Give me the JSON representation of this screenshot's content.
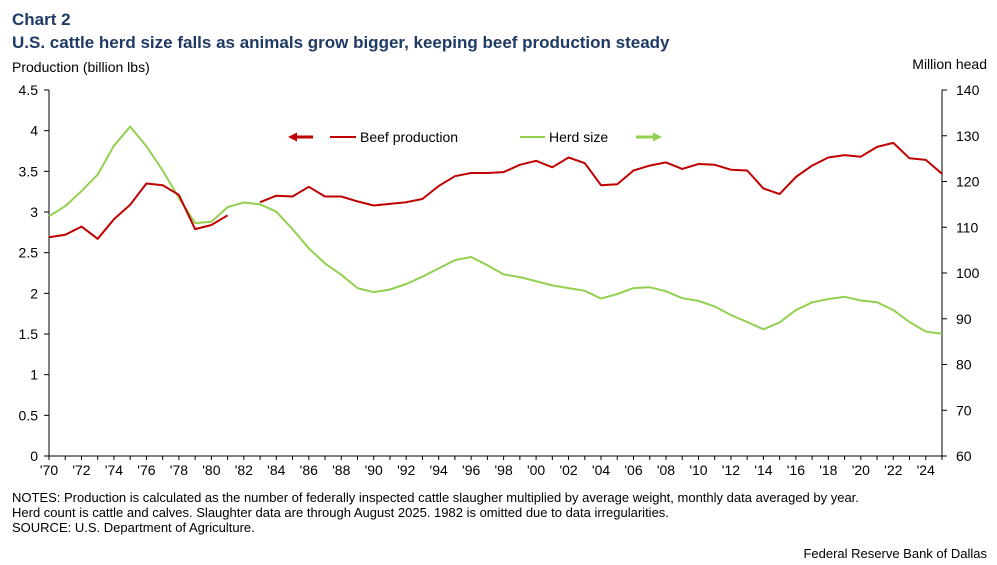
{
  "chart_label": "Chart 2",
  "title": "U.S. cattle herd size falls as animals grow bigger, keeping beef production steady",
  "y_left_label": "Production (billion lbs)",
  "y_right_label": "Million head",
  "notes": [
    "NOTES: Production is calculated as the number of federally inspected cattle slaugher multiplied by average weight, monthly data averaged by year.",
    "Herd count is cattle and calves. Slaughter data are through August 2025. 1982 is omitted due to data irregularities.",
    "SOURCE: U.S. Department of Agriculture."
  ],
  "credit": "Federal Reserve Bank of Dallas",
  "colors": {
    "beef": "#c00000",
    "herd": "#92d050",
    "axis": "#000000"
  },
  "chart_data": {
    "type": "line",
    "x_tick_labels": [
      "'70",
      "'72",
      "'74",
      "'76",
      "'78",
      "'80",
      "'82",
      "'84",
      "'86",
      "'88",
      "'90",
      "'92",
      "'94",
      "'96",
      "'98",
      "'00",
      "'02",
      "'04",
      "'06",
      "'08",
      "'10",
      "'12",
      "'14",
      "'16",
      "'18",
      "'20",
      "'22",
      "'24"
    ],
    "x_ticks": [
      1970,
      1972,
      1974,
      1976,
      1978,
      1980,
      1982,
      1984,
      1986,
      1988,
      1990,
      1992,
      1994,
      1996,
      1998,
      2000,
      2002,
      2004,
      2006,
      2008,
      2010,
      2012,
      2014,
      2016,
      2018,
      2020,
      2022,
      2024
    ],
    "xlim": [
      1970,
      2025
    ],
    "y_left": {
      "lim": [
        0,
        4.5
      ],
      "ticks": [
        "0",
        "0.5",
        "1",
        "1.5",
        "2",
        "2.5",
        "3",
        "3.5",
        "4",
        "4.5"
      ]
    },
    "y_right": {
      "lim": [
        60,
        140
      ],
      "ticks": [
        "60",
        "70",
        "80",
        "90",
        "100",
        "110",
        "120",
        "130",
        "140"
      ]
    },
    "grid": false,
    "legend": [
      {
        "name": "Beef production",
        "arrow": "left"
      },
      {
        "name": "Herd size",
        "arrow": "right"
      }
    ],
    "series": [
      {
        "name": "Beef production",
        "axis": "left",
        "segments": [
          {
            "x": [
              1970,
              1971,
              1972,
              1973,
              1974,
              1975,
              1976,
              1977,
              1978,
              1979,
              1980,
              1981
            ],
            "y": [
              2.69,
              2.72,
              2.82,
              2.67,
              2.91,
              3.09,
              3.35,
              3.33,
              3.21,
              2.79,
              2.84,
              2.96
            ]
          },
          {
            "x": [
              1983,
              1984,
              1985,
              1986,
              1987,
              1988,
              1989,
              1990,
              1991,
              1992,
              1993,
              1994,
              1995,
              1996,
              1997,
              1998,
              1999,
              2000,
              2001,
              2002,
              2003,
              2004,
              2005,
              2006,
              2007,
              2008,
              2009,
              2010,
              2011,
              2012,
              2013,
              2014,
              2015,
              2016,
              2017,
              2018,
              2019,
              2020,
              2021,
              2022,
              2023,
              2024,
              2025
            ],
            "y": [
              3.12,
              3.2,
              3.19,
              3.31,
              3.19,
              3.19,
              3.13,
              3.08,
              3.1,
              3.12,
              3.16,
              3.32,
              3.44,
              3.48,
              3.48,
              3.49,
              3.58,
              3.63,
              3.55,
              3.67,
              3.6,
              3.33,
              3.34,
              3.51,
              3.57,
              3.61,
              3.53,
              3.59,
              3.58,
              3.52,
              3.51,
              3.29,
              3.22,
              3.43,
              3.57,
              3.67,
              3.7,
              3.68,
              3.8,
              3.85,
              3.66,
              3.64,
              3.47
            ]
          }
        ]
      },
      {
        "name": "Herd size",
        "axis": "right",
        "segments": [
          {
            "x": [
              1970,
              1971,
              1972,
              1973,
              1974,
              1975,
              1976,
              1977,
              1978,
              1979,
              1980,
              1981,
              1982,
              1983,
              1984,
              1985,
              1986,
              1987,
              1988,
              1989,
              1990,
              1991,
              1992,
              1993,
              1994,
              1995,
              1996,
              1997,
              1998,
              1999,
              2000,
              2001,
              2002,
              2003,
              2004,
              2005,
              2006,
              2007,
              2008,
              2009,
              2010,
              2011,
              2012,
              2013,
              2014,
              2015,
              2016,
              2017,
              2018,
              2019,
              2020,
              2021,
              2022,
              2023,
              2024,
              2025
            ],
            "y": [
              112.4,
              114.6,
              117.9,
              121.5,
              127.8,
              132.0,
              127.7,
              122.4,
              116.4,
              110.9,
              111.2,
              114.4,
              115.4,
              115.0,
              113.4,
              109.6,
              105.4,
              102.1,
              99.6,
              96.7,
              95.8,
              96.4,
              97.6,
              99.2,
              101.0,
              102.8,
              103.5,
              101.7,
              99.7,
              99.1,
              98.2,
              97.3,
              96.7,
              96.1,
              94.4,
              95.4,
              96.7,
              96.9,
              96.0,
              94.5,
              93.9,
              92.7,
              90.8,
              89.3,
              87.7,
              89.2,
              91.9,
              93.6,
              94.3,
              94.8,
              94.0,
              93.6,
              91.9,
              89.3,
              87.2,
              86.7
            ]
          }
        ]
      }
    ]
  }
}
